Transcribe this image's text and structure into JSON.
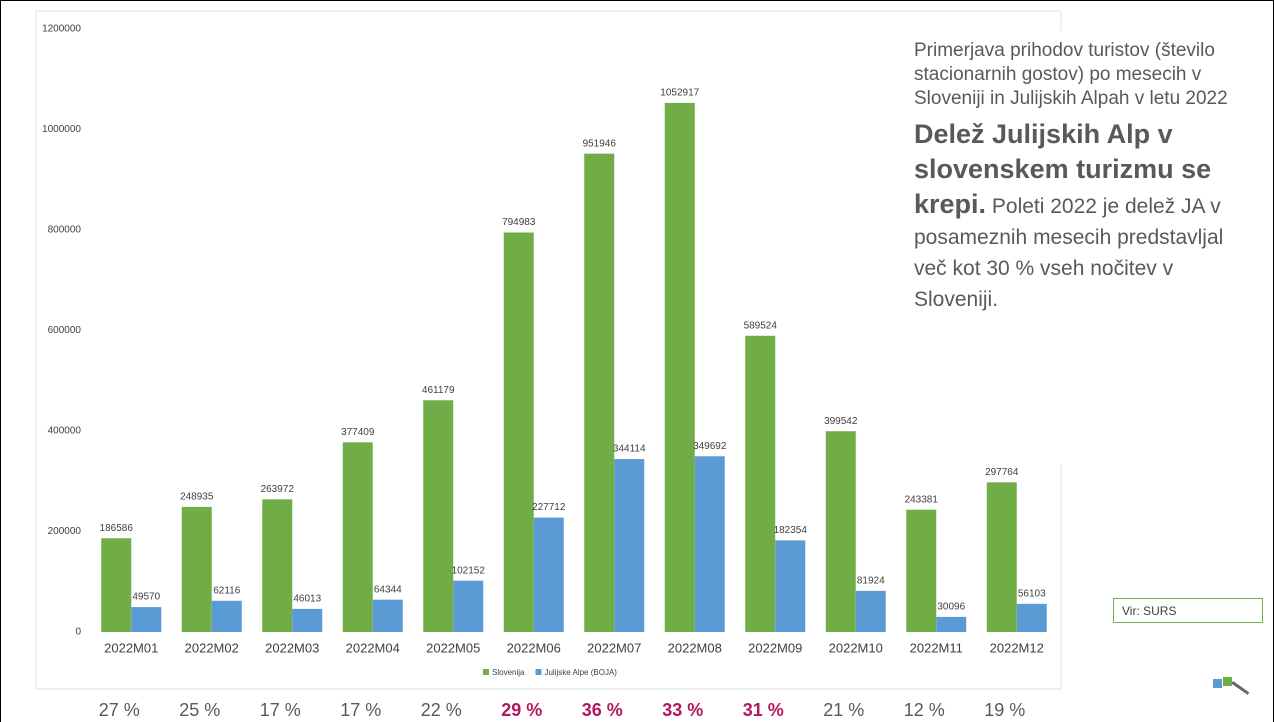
{
  "chart_data": {
    "type": "bar",
    "categories": [
      "2022M01",
      "2022M02",
      "2022M03",
      "2022M04",
      "2022M05",
      "2022M06",
      "2022M07",
      "2022M08",
      "2022M09",
      "2022M10",
      "2022M11",
      "2022M12"
    ],
    "series": [
      {
        "name": "Slovenija",
        "color": "#70ad47",
        "values": [
          186586,
          248935,
          263972,
          377409,
          461179,
          794983,
          951946,
          1052917,
          589524,
          399542,
          243381,
          297764
        ]
      },
      {
        "name": "Julijske Alpe (BOJA)",
        "color": "#5b9bd5",
        "values": [
          49570,
          62116,
          46013,
          64344,
          102152,
          227712,
          344114,
          349692,
          182354,
          81924,
          30096,
          56103
        ]
      }
    ],
    "ylim": [
      0,
      1200000
    ],
    "yticks": [
      0,
      200000,
      400000,
      600000,
      800000,
      1000000,
      1200000
    ],
    "grid": false
  },
  "note": {
    "subtitle": "Primerjava prihodov turistov (število stacionarnih gostov) po mesecih v Sloveniji in Julijskih Alpah v letu 2022",
    "headline": "Delež Julijskih Alp v slovenskem turizmu se krepi.",
    "text": "Poleti 2022 je delež JA v posameznih mesecih predstavljal več kot 30 % vseh nočitev v Sloveniji."
  },
  "source": "Vir: SURS",
  "shares": [
    {
      "label": "27 %",
      "highlight": false
    },
    {
      "label": "25 %",
      "highlight": false
    },
    {
      "label": "17 %",
      "highlight": false
    },
    {
      "label": "17 %",
      "highlight": false
    },
    {
      "label": "22 %",
      "highlight": false
    },
    {
      "label": "29 %",
      "highlight": true
    },
    {
      "label": "36 %",
      "highlight": true
    },
    {
      "label": "33 %",
      "highlight": true
    },
    {
      "label": "31 %",
      "highlight": true
    },
    {
      "label": "21 %",
      "highlight": false
    },
    {
      "label": "12 %",
      "highlight": false
    },
    {
      "label": "19 %",
      "highlight": false
    }
  ]
}
